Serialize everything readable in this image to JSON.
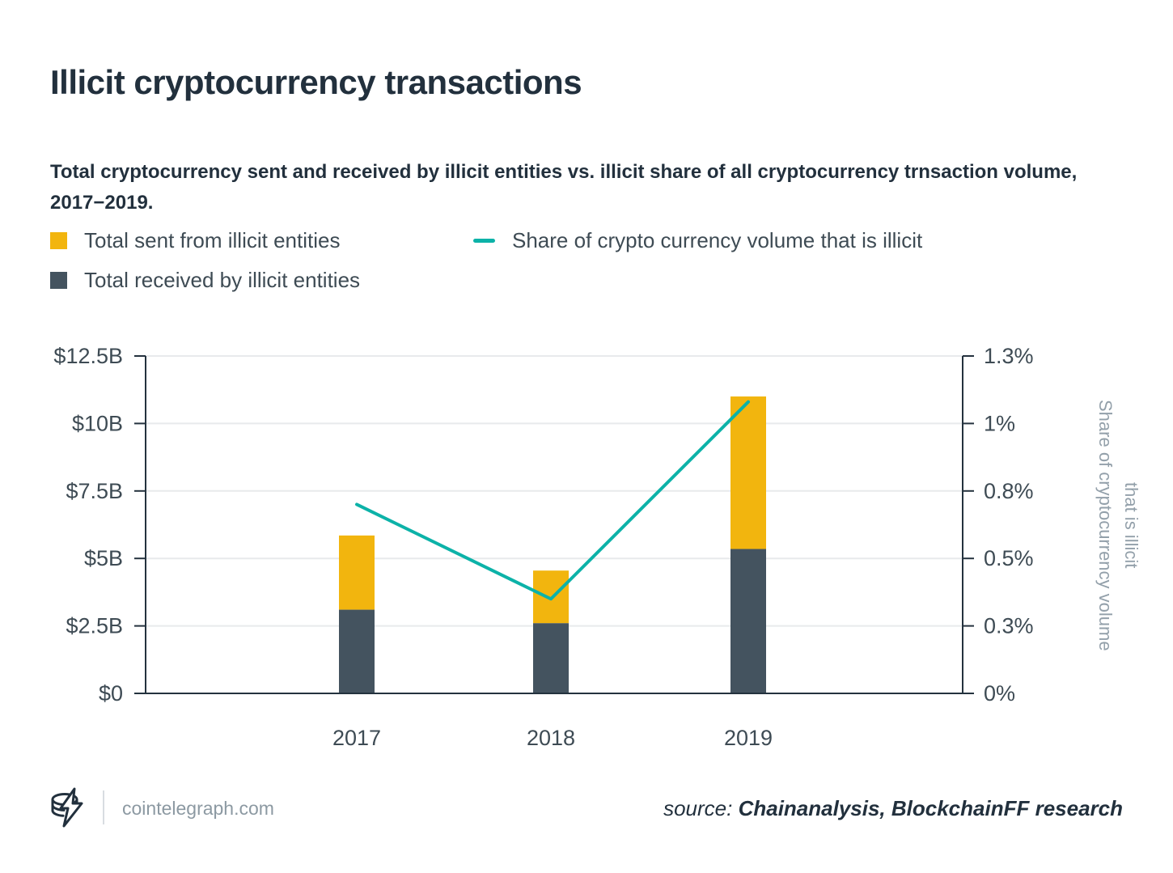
{
  "title": "Illicit cryptocurrency transactions",
  "subtitle": "Total cryptocurrency sent and received by illicit entities vs. illicit share of all cryptocurrency trnsaction volume, 2017−2019.",
  "colors": {
    "yellow": "#F2B50E",
    "slate": "#44535F",
    "teal": "#0CB2A8",
    "title_text": "#22303D",
    "axis_text": "#3E4B54",
    "muted_text": "#93A0AA",
    "grid": "#E8EAEC",
    "axis_line": "#24323E",
    "footer_text": "#8C99A2",
    "divider": "#D8DDE1"
  },
  "chart_data": {
    "type": "bar",
    "title": "Illicit cryptocurrency transactions",
    "subtitle": "Total cryptocurrency sent and received by illicit entities vs. illicit share of all cryptocurrency trnsaction volume, 2017−2019.",
    "categories": [
      "2017",
      "2018",
      "2019"
    ],
    "series": [
      {
        "name": "Total sent from illicit entities",
        "type": "bar",
        "role": "stack-top",
        "color": "#F2B50E",
        "axis": "left",
        "values": [
          2.75,
          1.95,
          5.65
        ]
      },
      {
        "name": "Total received by illicit entities",
        "type": "bar",
        "role": "stack-bottom",
        "color": "#44535F",
        "axis": "left",
        "values": [
          3.1,
          2.6,
          5.35
        ]
      },
      {
        "name": "Share of crypto currency volume that is illicit",
        "type": "line",
        "role": "line",
        "color": "#0CB2A8",
        "axis": "right",
        "values": [
          0.7,
          0.35,
          1.08
        ]
      }
    ],
    "left_axis": {
      "unit": "USD billions",
      "tick_labels": [
        "$0",
        "$2.5B",
        "$5B",
        "$7.5B",
        "$10B",
        "$12.5B"
      ],
      "tick_values": [
        0,
        2.5,
        5,
        7.5,
        10,
        12.5
      ],
      "min": 0,
      "max": 12.5
    },
    "right_axis": {
      "unit": "percent",
      "tick_labels": [
        "0%",
        "0.3%",
        "0.5%",
        "0.8%",
        "1%",
        "1.3%"
      ],
      "tick_values": [
        0,
        0.25,
        0.5,
        0.75,
        1.0,
        1.25
      ],
      "min": 0,
      "max": 1.25,
      "label": "Share of cryptocurrency volume that is illicit",
      "label_lines": [
        "Share of cryptocurrency volume",
        "that is illicit"
      ]
    },
    "grid": "horizontal",
    "legend_position": "top-left",
    "stacked": true
  },
  "footer": {
    "site": "cointelegraph.com",
    "source_prefix": "source:",
    "source_text": "Chainanalysis, BlockchainFF research",
    "logo": "cointelegraph-coin-bolt-logo"
  }
}
